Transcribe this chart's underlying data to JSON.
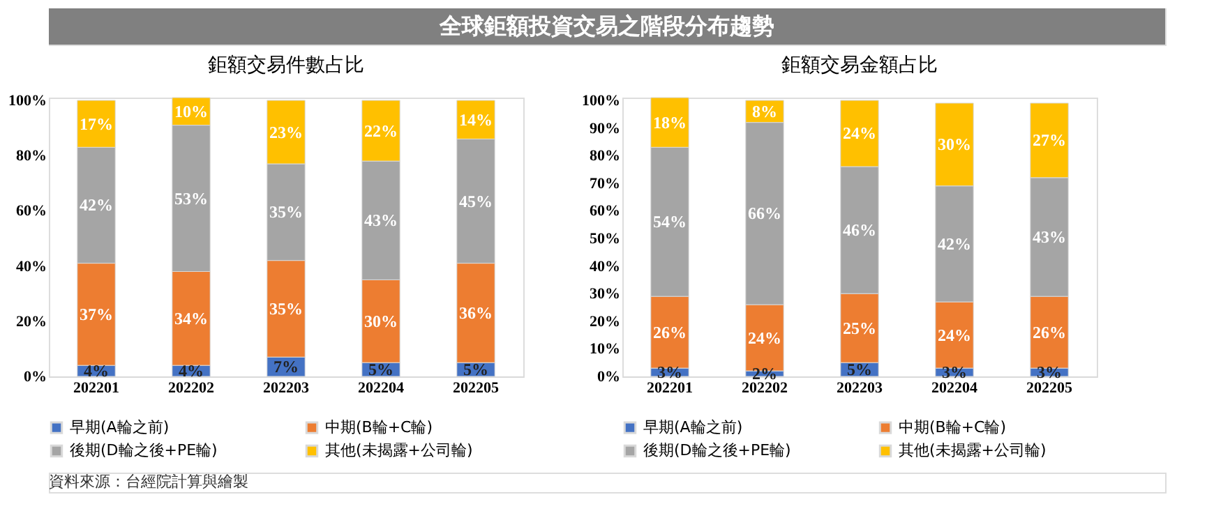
{
  "chart_data": [
    {
      "type": "bar",
      "stacked": true,
      "title": "鉅額交易件數占比",
      "annotations": [
        "全球鉅額投資交易之階段分布趨勢"
      ],
      "categories": [
        "202201",
        "202202",
        "202203",
        "202204",
        "202205"
      ],
      "series": [
        {
          "name": "早期(A輪之前)",
          "color": "#4472c4",
          "values": [
            4,
            4,
            7,
            5,
            5
          ],
          "value_labels": [
            "4%",
            "4%",
            "7%",
            "5%",
            "5%"
          ]
        },
        {
          "name": "中期(B輪+C輪)",
          "color": "#ed7d31",
          "values": [
            37,
            34,
            35,
            30,
            36
          ],
          "value_labels": [
            "37%",
            "34%",
            "35%",
            "30%",
            "36%"
          ]
        },
        {
          "name": "後期(D輪之後+PE輪)",
          "color": "#a5a5a5",
          "values": [
            42,
            53,
            35,
            43,
            45
          ],
          "value_labels": [
            "42%",
            "53%",
            "35%",
            "43%",
            "45%"
          ]
        },
        {
          "name": "其他(未揭露+公司輪)",
          "color": "#ffc000",
          "values": [
            17,
            10,
            23,
            22,
            14
          ],
          "value_labels": [
            "17%",
            "10%",
            "23%",
            "22%",
            "14%"
          ]
        }
      ],
      "ylim": [
        0,
        101
      ],
      "yticks": [
        {
          "value": 0,
          "label": "0%"
        },
        {
          "value": 20,
          "label": "20%"
        },
        {
          "value": 40,
          "label": "40%"
        },
        {
          "value": 60,
          "label": "60%"
        },
        {
          "value": 80,
          "label": "80%"
        },
        {
          "value": 100,
          "label": "100%"
        }
      ],
      "legend": "bottom"
    },
    {
      "type": "bar",
      "stacked": true,
      "title": "鉅額交易金額占比",
      "annotations": [
        "資料來源：台經院計算與繪製"
      ],
      "categories": [
        "202201",
        "202202",
        "202203",
        "202204",
        "202205"
      ],
      "series": [
        {
          "name": "早期(A輪之前)",
          "color": "#4472c4",
          "values": [
            3,
            2,
            5,
            3,
            3
          ],
          "value_labels": [
            "3%",
            "2%",
            "5%",
            "3%",
            "3%"
          ]
        },
        {
          "name": "中期(B輪+C輪)",
          "color": "#ed7d31",
          "values": [
            26,
            24,
            25,
            24,
            26
          ],
          "value_labels": [
            "26%",
            "24%",
            "25%",
            "24%",
            "26%"
          ]
        },
        {
          "name": "後期(D輪之後+PE輪)",
          "color": "#a5a5a5",
          "values": [
            54,
            66,
            46,
            42,
            43
          ],
          "value_labels": [
            "54%",
            "66%",
            "46%",
            "42%",
            "43%"
          ]
        },
        {
          "name": "其他(未揭露+公司輪)",
          "color": "#ffc000",
          "values": [
            18,
            8,
            24,
            30,
            27
          ],
          "value_labels": [
            "18%",
            "8%",
            "24%",
            "30%",
            "27%"
          ]
        }
      ],
      "ylim": [
        0,
        101
      ],
      "yticks": [
        {
          "value": 0,
          "label": "0%"
        },
        {
          "value": 10,
          "label": "10%"
        },
        {
          "value": 20,
          "label": "20%"
        },
        {
          "value": 30,
          "label": "30%"
        },
        {
          "value": 40,
          "label": "40%"
        },
        {
          "value": 50,
          "label": "50%"
        },
        {
          "value": 60,
          "label": "60%"
        },
        {
          "value": 70,
          "label": "70%"
        },
        {
          "value": 80,
          "label": "80%"
        },
        {
          "value": 90,
          "label": "90%"
        },
        {
          "value": 100,
          "label": "100%"
        }
      ],
      "legend": "bottom"
    }
  ]
}
